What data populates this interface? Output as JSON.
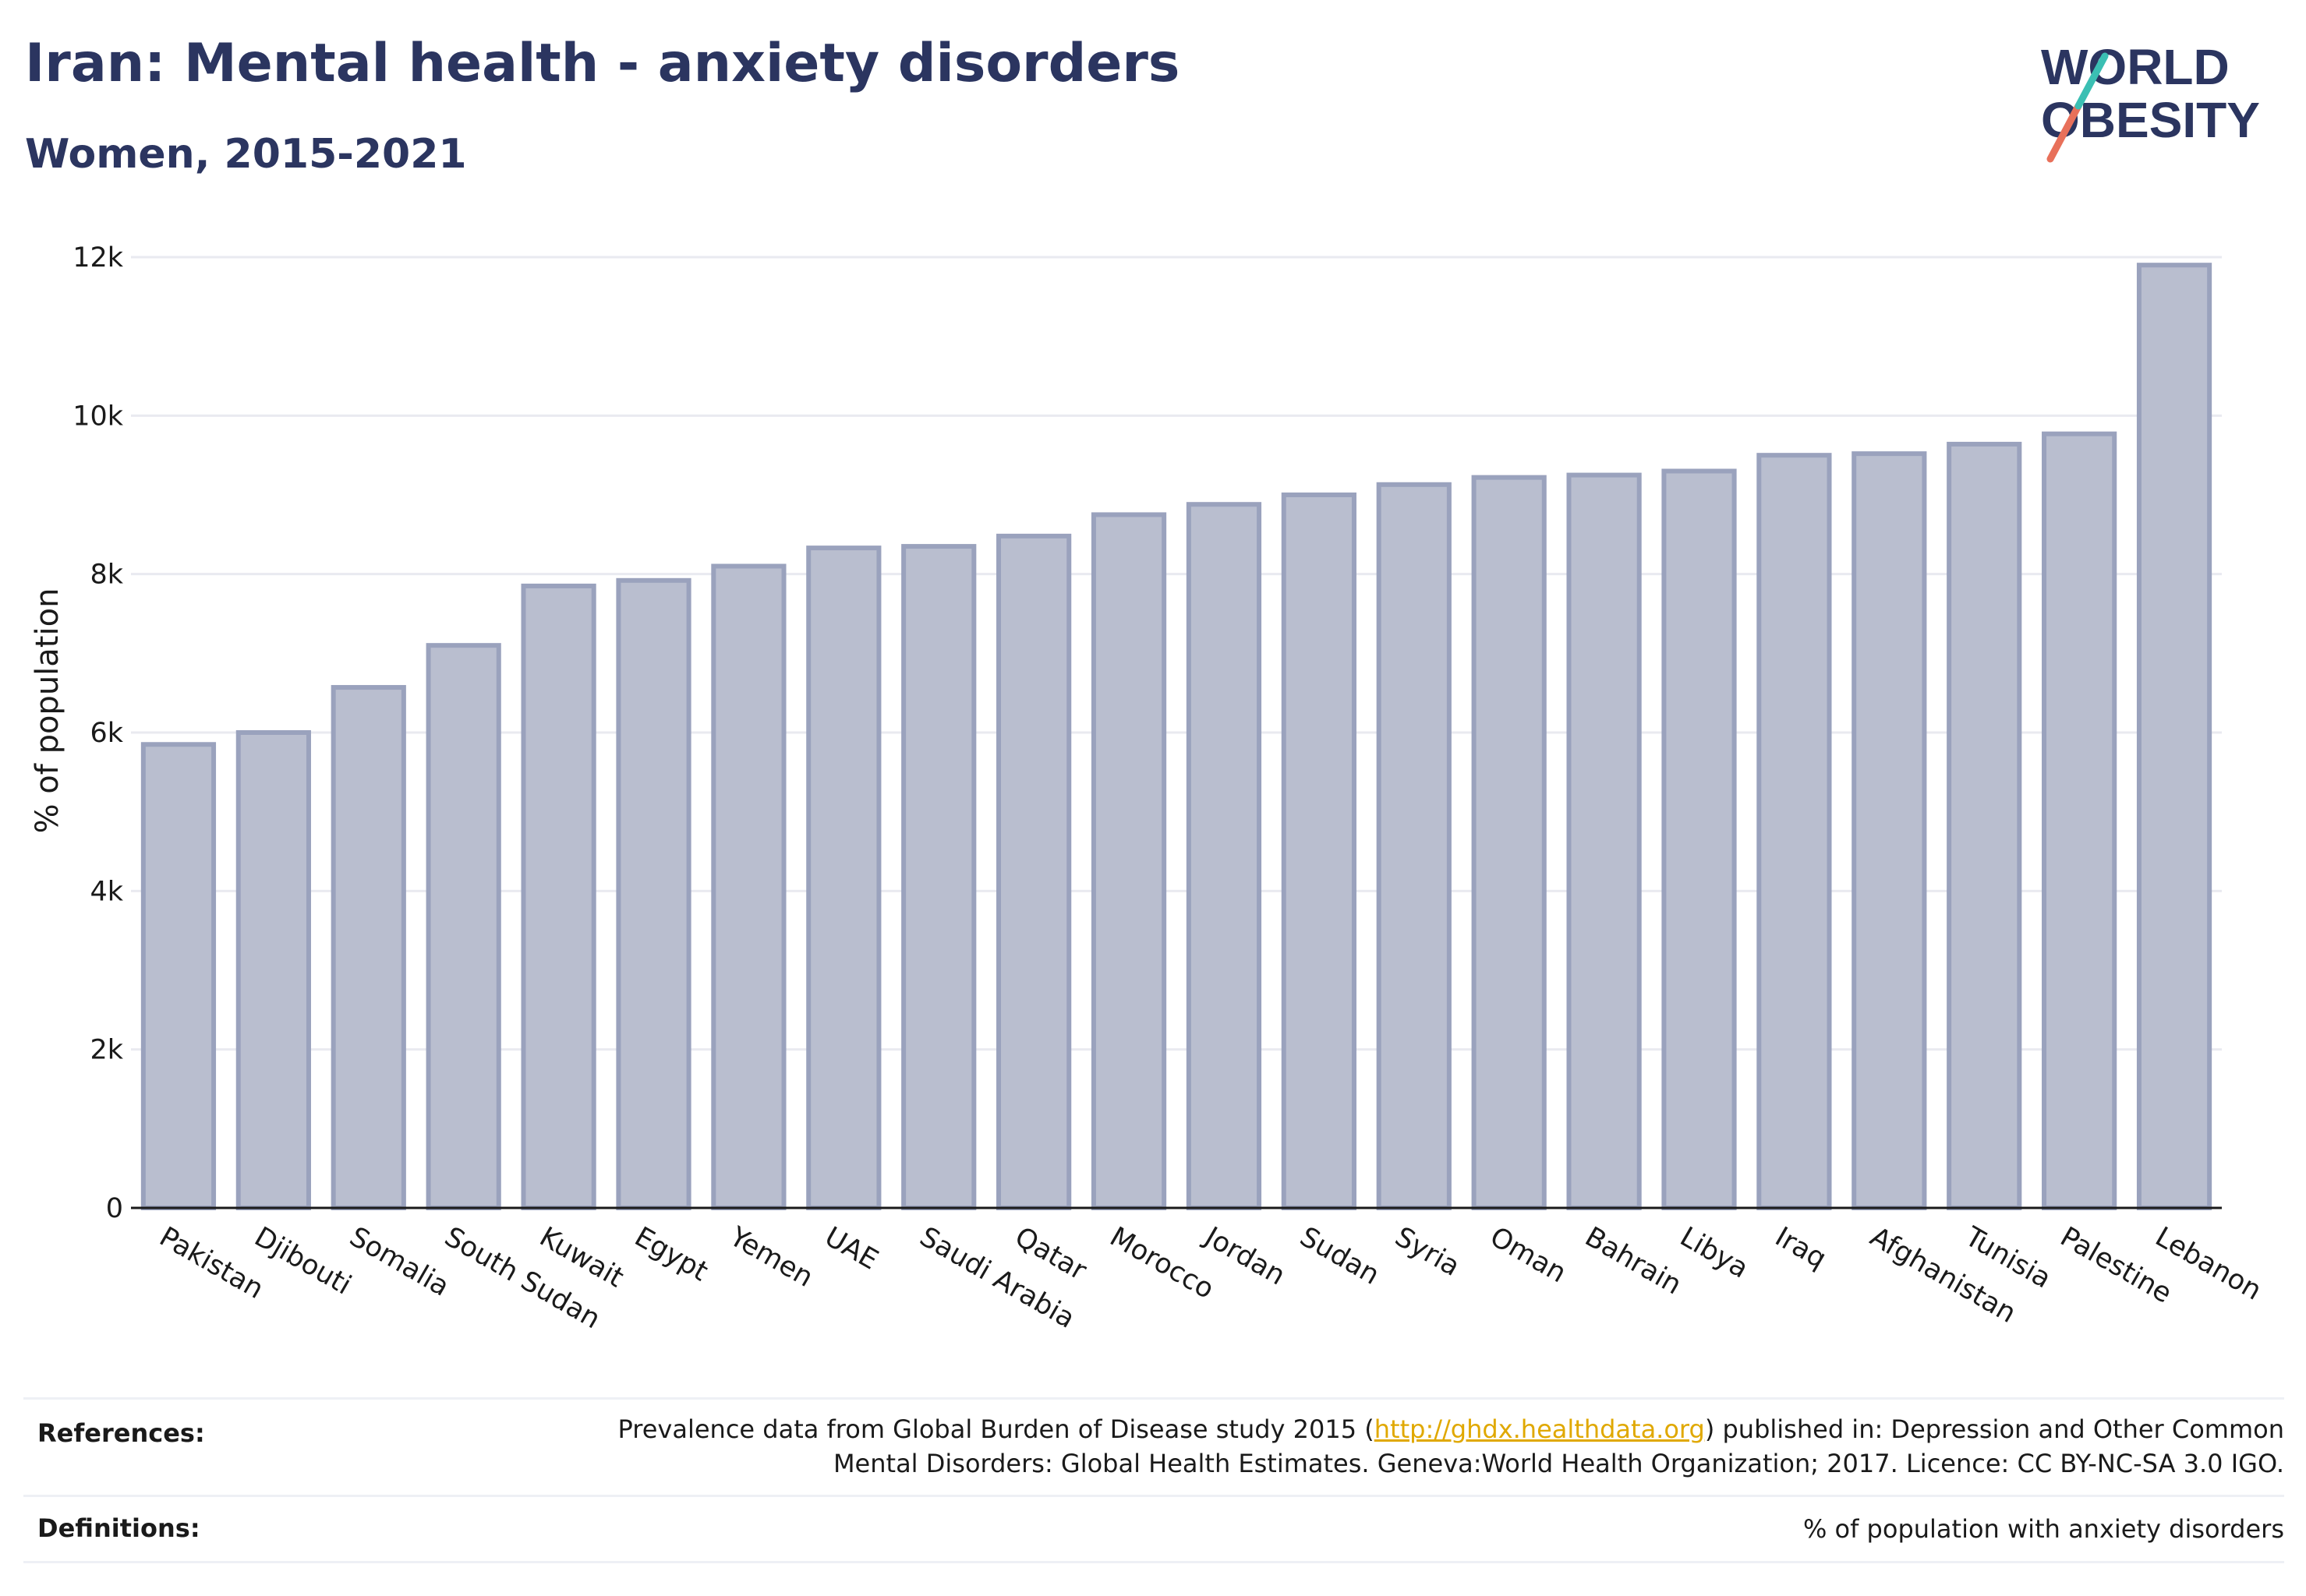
{
  "title": "Iran: Mental health - anxiety disorders",
  "subtitle": "Women, 2015-2021",
  "logo": {
    "line1": "WORLD",
    "line2": "OBESITY"
  },
  "colors": {
    "bar_fill": "#b9becf",
    "bar_stroke": "#9aa2bd",
    "title": "#2b3560",
    "logo_teal": "#3bbfb3",
    "logo_coral": "#e8705a",
    "link": "#e0a800"
  },
  "chart_data": {
    "type": "bar",
    "ylabel": "% of population",
    "xlabel": "",
    "ylim": [
      0,
      12000
    ],
    "yticks": [
      0,
      2000,
      4000,
      6000,
      8000,
      10000,
      12000
    ],
    "yticklabels": [
      "0",
      "2k",
      "4k",
      "6k",
      "8k",
      "10k",
      "12k"
    ],
    "grid": true,
    "categories": [
      "Pakistan",
      "Djibouti",
      "Somalia",
      "South Sudan",
      "Kuwait",
      "Egypt",
      "Yemen",
      "UAE",
      "Saudi Arabia",
      "Qatar",
      "Morocco",
      "Jordan",
      "Sudan",
      "Syria",
      "Oman",
      "Bahrain",
      "Libya",
      "Iraq",
      "Afghanistan",
      "Tunisia",
      "Palestine",
      "Lebanon"
    ],
    "values": [
      5850,
      6000,
      6570,
      7100,
      7850,
      7920,
      8100,
      8330,
      8350,
      8480,
      8750,
      8880,
      9000,
      9130,
      9220,
      9250,
      9300,
      9500,
      9520,
      9640,
      9770,
      11900
    ]
  },
  "footer": {
    "references_label": "References:",
    "references_text_1": "Prevalence data from Global Burden of Disease study 2015 (",
    "references_link": "http://ghdx.healthdata.org",
    "references_text_2": ") published in: Depression and Other Common",
    "references_text_3": "Mental Disorders: Global Health Estimates. Geneva:World Health Organization; 2017. Licence: CC BY-NC-SA 3.0 IGO.",
    "definitions_label": "Definitions:",
    "definitions_text": "% of population with anxiety disorders"
  }
}
